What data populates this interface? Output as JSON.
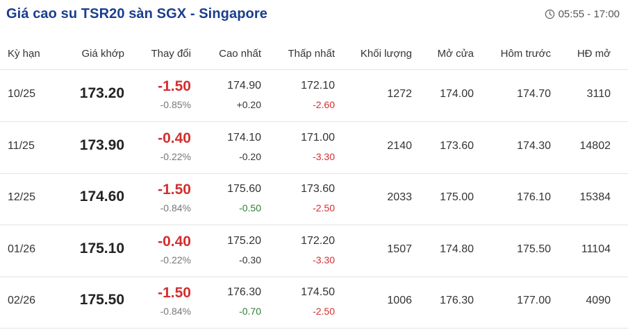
{
  "title": "Giá cao su TSR20 sàn SGX - Singapore",
  "time_range": "05:55 - 17:00",
  "icons": {
    "clock": "clock-icon"
  },
  "colors": {
    "title": "#1a3d8f",
    "down": "#d32f2f",
    "up": "#2e7d32"
  },
  "columns": [
    "Kỳ hạn",
    "Giá khớp",
    "Thay đổi",
    "Cao nhất",
    "Thấp nhất",
    "Khối lượng",
    "Mở cửa",
    "Hôm trước",
    "HĐ mở"
  ],
  "rows": [
    {
      "term": "10/25",
      "price": "173.20",
      "change": "-1.50",
      "change_pct": "-0.85%",
      "high": "174.90",
      "high_diff": "+0.20",
      "low": "172.10",
      "low_diff": "-2.60",
      "volume": "1272",
      "open": "174.00",
      "prev": "174.70",
      "oi": "3110"
    },
    {
      "term": "11/25",
      "price": "173.90",
      "change": "-0.40",
      "change_pct": "-0.22%",
      "high": "174.10",
      "high_diff": "-0.20",
      "low": "171.00",
      "low_diff": "-3.30",
      "volume": "2140",
      "open": "173.60",
      "prev": "174.30",
      "oi": "14802"
    },
    {
      "term": "12/25",
      "price": "174.60",
      "change": "-1.50",
      "change_pct": "-0.84%",
      "high": "175.60",
      "high_diff": "-0.50",
      "low": "173.60",
      "low_diff": "-2.50",
      "volume": "2033",
      "open": "175.00",
      "prev": "176.10",
      "oi": "15384"
    },
    {
      "term": "01/26",
      "price": "175.10",
      "change": "-0.40",
      "change_pct": "-0.22%",
      "high": "175.20",
      "high_diff": "-0.30",
      "low": "172.20",
      "low_diff": "-3.30",
      "volume": "1507",
      "open": "174.80",
      "prev": "175.50",
      "oi": "11104"
    },
    {
      "term": "02/26",
      "price": "175.50",
      "change": "-1.50",
      "change_pct": "-0.84%",
      "high": "176.30",
      "high_diff": "-0.70",
      "low": "174.50",
      "low_diff": "-2.50",
      "volume": "1006",
      "open": "176.30",
      "prev": "177.00",
      "oi": "4090"
    }
  ]
}
